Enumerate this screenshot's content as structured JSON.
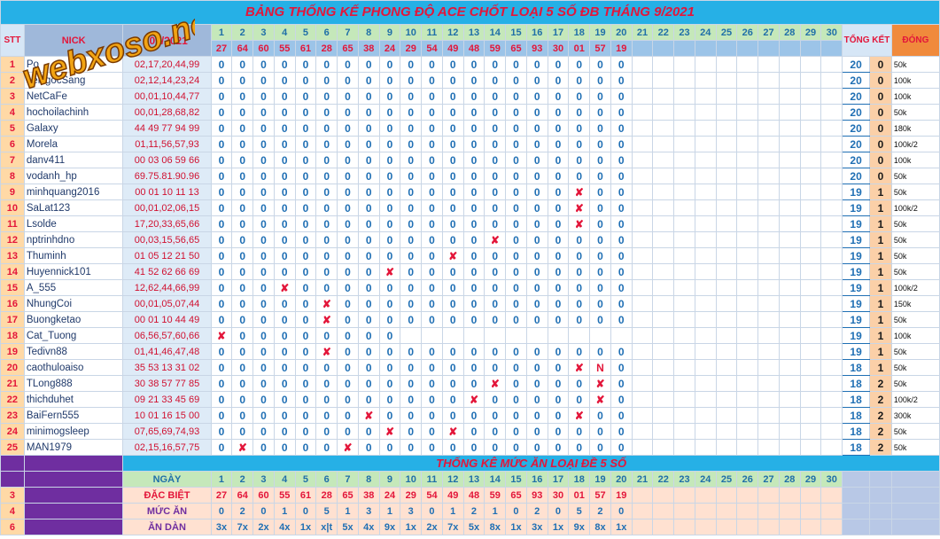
{
  "title": "BẢNG THỐNG KẾ PHONG ĐỘ ACE CHỐT LOẠI 5 SỐ ĐB THÁNG 9/2021",
  "logo_text": "webxoso.net",
  "headers": {
    "stt": "STT",
    "nick": "NICK",
    "date": "/09/2021",
    "tong_ket": "TỔNG KẾT",
    "dong": "ĐÓNG"
  },
  "days": [
    "1",
    "2",
    "3",
    "4",
    "5",
    "6",
    "7",
    "8",
    "9",
    "10",
    "11",
    "12",
    "13",
    "14",
    "15",
    "16",
    "17",
    "18",
    "19",
    "20",
    "21",
    "22",
    "23",
    "24",
    "25",
    "26",
    "27",
    "28",
    "29",
    "30"
  ],
  "results": [
    "27",
    "64",
    "60",
    "55",
    "61",
    "28",
    "65",
    "38",
    "24",
    "29",
    "54",
    "49",
    "48",
    "59",
    "65",
    "93",
    "30",
    "01",
    "57",
    "19",
    "",
    "",
    "",
    "",
    "",
    "",
    "",
    "",
    "",
    ""
  ],
  "players": [
    {
      "stt": "1",
      "nick": "Po",
      "nums": "02,17,20,44,99",
      "marks": [
        "0",
        "0",
        "0",
        "0",
        "0",
        "0",
        "0",
        "0",
        "0",
        "0",
        "0",
        "0",
        "0",
        "0",
        "0",
        "0",
        "0",
        "0",
        "0",
        "0"
      ],
      "total": "20",
      "ket": "0",
      "amount": "50k"
    },
    {
      "stt": "2",
      "nick": "LeNgocSang",
      "nums": "02,12,14,23,24",
      "marks": [
        "0",
        "0",
        "0",
        "0",
        "0",
        "0",
        "0",
        "0",
        "0",
        "0",
        "0",
        "0",
        "0",
        "0",
        "0",
        "0",
        "0",
        "0",
        "0",
        "0"
      ],
      "total": "20",
      "ket": "0",
      "amount": "100k"
    },
    {
      "stt": "3",
      "nick": "NetCaFe",
      "nums": "00,01,10,44,77",
      "marks": [
        "0",
        "0",
        "0",
        "0",
        "0",
        "0",
        "0",
        "0",
        "0",
        "0",
        "0",
        "0",
        "0",
        "0",
        "0",
        "0",
        "0",
        "0",
        "0",
        "0"
      ],
      "total": "20",
      "ket": "0",
      "amount": "100k"
    },
    {
      "stt": "4",
      "nick": "hochoilachinh",
      "nums": "00,01,28,68,82",
      "marks": [
        "0",
        "0",
        "0",
        "0",
        "0",
        "0",
        "0",
        "0",
        "0",
        "0",
        "0",
        "0",
        "0",
        "0",
        "0",
        "0",
        "0",
        "0",
        "0",
        "0"
      ],
      "total": "20",
      "ket": "0",
      "amount": "50k"
    },
    {
      "stt": "5",
      "nick": "Galaxy",
      "nums": "44 49 77 94 99",
      "marks": [
        "0",
        "0",
        "0",
        "0",
        "0",
        "0",
        "0",
        "0",
        "0",
        "0",
        "0",
        "0",
        "0",
        "0",
        "0",
        "0",
        "0",
        "0",
        "0",
        "0"
      ],
      "total": "20",
      "ket": "0",
      "amount": "180k"
    },
    {
      "stt": "6",
      "nick": "Morela",
      "nums": "01,11,56,57,93",
      "marks": [
        "0",
        "0",
        "0",
        "0",
        "0",
        "0",
        "0",
        "0",
        "0",
        "0",
        "0",
        "0",
        "0",
        "0",
        "0",
        "0",
        "0",
        "0",
        "0",
        "0"
      ],
      "total": "20",
      "ket": "0",
      "amount": "100k/2"
    },
    {
      "stt": "7",
      "nick": "danv411",
      "nums": "00 03 06 59 66",
      "marks": [
        "0",
        "0",
        "0",
        "0",
        "0",
        "0",
        "0",
        "0",
        "0",
        "0",
        "0",
        "0",
        "0",
        "0",
        "0",
        "0",
        "0",
        "0",
        "0",
        "0"
      ],
      "total": "20",
      "ket": "0",
      "amount": "100k"
    },
    {
      "stt": "8",
      "nick": "vodanh_hp",
      "nums": "69.75.81.90.96",
      "marks": [
        "0",
        "0",
        "0",
        "0",
        "0",
        "0",
        "0",
        "0",
        "0",
        "0",
        "0",
        "0",
        "0",
        "0",
        "0",
        "0",
        "0",
        "0",
        "0",
        "0"
      ],
      "total": "20",
      "ket": "0",
      "amount": "50k"
    },
    {
      "stt": "9",
      "nick": "minhquang2016",
      "nums": "00 01 10 11 13",
      "marks": [
        "0",
        "0",
        "0",
        "0",
        "0",
        "0",
        "0",
        "0",
        "0",
        "0",
        "0",
        "0",
        "0",
        "0",
        "0",
        "0",
        "0",
        "x",
        "0",
        "0"
      ],
      "total": "19",
      "ket": "1",
      "amount": "50k"
    },
    {
      "stt": "10",
      "nick": "SaLat123",
      "nums": "00,01,02,06,15",
      "marks": [
        "0",
        "0",
        "0",
        "0",
        "0",
        "0",
        "0",
        "0",
        "0",
        "0",
        "0",
        "0",
        "0",
        "0",
        "0",
        "0",
        "0",
        "x",
        "0",
        "0"
      ],
      "total": "19",
      "ket": "1",
      "amount": "100k/2"
    },
    {
      "stt": "11",
      "nick": "Lsolde",
      "nums": "17,20,33,65,66",
      "marks": [
        "0",
        "0",
        "0",
        "0",
        "0",
        "0",
        "0",
        "0",
        "0",
        "0",
        "0",
        "0",
        "0",
        "0",
        "0",
        "0",
        "0",
        "x",
        "0",
        "0"
      ],
      "total": "19",
      "ket": "1",
      "amount": "50k"
    },
    {
      "stt": "12",
      "nick": "nptrinhdno",
      "nums": "00,03,15,56,65",
      "marks": [
        "0",
        "0",
        "0",
        "0",
        "0",
        "0",
        "0",
        "0",
        "0",
        "0",
        "0",
        "0",
        "0",
        "x",
        "0",
        "0",
        "0",
        "0",
        "0",
        "0"
      ],
      "total": "19",
      "ket": "1",
      "amount": "50k"
    },
    {
      "stt": "13",
      "nick": "Thuminh",
      "nums": "01 05 12 21 50",
      "marks": [
        "0",
        "0",
        "0",
        "0",
        "0",
        "0",
        "0",
        "0",
        "0",
        "0",
        "0",
        "x",
        "0",
        "0",
        "0",
        "0",
        "0",
        "0",
        "0",
        "0"
      ],
      "total": "19",
      "ket": "1",
      "amount": "50k"
    },
    {
      "stt": "14",
      "nick": "Huyennick101",
      "nums": "41 52 62 66 69",
      "marks": [
        "0",
        "0",
        "0",
        "0",
        "0",
        "0",
        "0",
        "0",
        "x",
        "0",
        "0",
        "0",
        "0",
        "0",
        "0",
        "0",
        "0",
        "0",
        "0",
        "0"
      ],
      "total": "19",
      "ket": "1",
      "amount": "50k"
    },
    {
      "stt": "15",
      "nick": "A_555",
      "nums": "12,62,44,66,99",
      "marks": [
        "0",
        "0",
        "0",
        "x",
        "0",
        "0",
        "0",
        "0",
        "0",
        "0",
        "0",
        "0",
        "0",
        "0",
        "0",
        "0",
        "0",
        "0",
        "0",
        "0"
      ],
      "total": "19",
      "ket": "1",
      "amount": "100k/2"
    },
    {
      "stt": "16",
      "nick": "NhungCoi",
      "nums": "00,01,05,07,44",
      "marks": [
        "0",
        "0",
        "0",
        "0",
        "0",
        "x",
        "0",
        "0",
        "0",
        "0",
        "0",
        "0",
        "0",
        "0",
        "0",
        "0",
        "0",
        "0",
        "0",
        "0"
      ],
      "total": "19",
      "ket": "1",
      "amount": "150k"
    },
    {
      "stt": "17",
      "nick": "Buongketao",
      "nums": "00 01 10 44 49",
      "marks": [
        "0",
        "0",
        "0",
        "0",
        "0",
        "x",
        "0",
        "0",
        "0",
        "0",
        "0",
        "0",
        "0",
        "0",
        "0",
        "0",
        "0",
        "0",
        "0",
        "0"
      ],
      "total": "19",
      "ket": "1",
      "amount": "50k"
    },
    {
      "stt": "18",
      "nick": "Cat_Tuong",
      "nums": "06,56,57,60,66",
      "marks": [
        "x",
        "0",
        "0",
        "0",
        "0",
        "0",
        "0",
        "0",
        "0",
        "",
        "",
        "",
        "",
        "",
        "",
        "",
        "",
        "",
        "",
        ""
      ],
      "total": "19",
      "ket": "1",
      "amount": "100k"
    },
    {
      "stt": "19",
      "nick": "Tedivn88",
      "nums": "01,41,46,47,48",
      "marks": [
        "0",
        "0",
        "0",
        "0",
        "0",
        "x",
        "0",
        "0",
        "0",
        "0",
        "0",
        "0",
        "0",
        "0",
        "0",
        "0",
        "0",
        "0",
        "0",
        "0"
      ],
      "total": "19",
      "ket": "1",
      "amount": "50k"
    },
    {
      "stt": "20",
      "nick": "caothuloaiso",
      "nums": "35 53 13 31 02",
      "marks": [
        "0",
        "0",
        "0",
        "0",
        "0",
        "0",
        "0",
        "0",
        "0",
        "0",
        "0",
        "0",
        "0",
        "0",
        "0",
        "0",
        "0",
        "x",
        "N",
        "0"
      ],
      "total": "18",
      "ket": "1",
      "amount": "50k"
    },
    {
      "stt": "21",
      "nick": "TLong888",
      "nums": "30 38 57 77 85",
      "marks": [
        "0",
        "0",
        "0",
        "0",
        "0",
        "0",
        "0",
        "0",
        "0",
        "0",
        "0",
        "0",
        "0",
        "x",
        "0",
        "0",
        "0",
        "0",
        "x",
        "0"
      ],
      "total": "18",
      "ket": "2",
      "amount": "50k"
    },
    {
      "stt": "22",
      "nick": "thichduhet",
      "nums": "09 21 33 45 69",
      "marks": [
        "0",
        "0",
        "0",
        "0",
        "0",
        "0",
        "0",
        "0",
        "0",
        "0",
        "0",
        "0",
        "x",
        "0",
        "0",
        "0",
        "0",
        "0",
        "x",
        "0"
      ],
      "total": "18",
      "ket": "2",
      "amount": "100k/2"
    },
    {
      "stt": "23",
      "nick": "BaiFern555",
      "nums": "10 01 16 15 00",
      "marks": [
        "0",
        "0",
        "0",
        "0",
        "0",
        "0",
        "0",
        "x",
        "0",
        "0",
        "0",
        "0",
        "0",
        "0",
        "0",
        "0",
        "0",
        "x",
        "0",
        "0"
      ],
      "total": "18",
      "ket": "2",
      "amount": "300k"
    },
    {
      "stt": "24",
      "nick": "minimogsleep",
      "nums": "07,65,69,74,93",
      "marks": [
        "0",
        "0",
        "0",
        "0",
        "0",
        "0",
        "0",
        "0",
        "x",
        "0",
        "0",
        "x",
        "0",
        "0",
        "0",
        "0",
        "0",
        "0",
        "0",
        "0"
      ],
      "total": "18",
      "ket": "2",
      "amount": "50k"
    },
    {
      "stt": "25",
      "nick": "MAN1979",
      "nums": "02,15,16,57,75",
      "marks": [
        "0",
        "x",
        "0",
        "0",
        "0",
        "0",
        "x",
        "0",
        "0",
        "0",
        "0",
        "0",
        "0",
        "0",
        "0",
        "0",
        "0",
        "0",
        "0",
        "0"
      ],
      "total": "18",
      "ket": "2",
      "amount": "50k"
    }
  ],
  "stats": {
    "title": "THỐNG KÊ MỨC ĂN LOẠI ĐỀ 5 SỐ",
    "ngay_label": "NGÀY",
    "db_label": "ĐẶC BIỆT",
    "muc_an_label": "MỨC ĂN",
    "an_dan_label": "ĂN DÀN",
    "row_numbers": [
      "3",
      "4",
      "6"
    ],
    "muc_an": [
      "0",
      "2",
      "0",
      "1",
      "0",
      "5",
      "1",
      "3",
      "1",
      "3",
      "0",
      "1",
      "2",
      "1",
      "0",
      "2",
      "0",
      "5",
      "2",
      "0",
      "",
      "",
      "",
      "",
      "",
      "",
      "",
      "",
      "",
      ""
    ],
    "an_dan": [
      "3x",
      "7x",
      "2x",
      "4x",
      "1x",
      "x|t",
      "5x",
      "4x",
      "9x",
      "1x",
      "2x",
      "7x",
      "5x",
      "8x",
      "1x",
      "3x",
      "1x",
      "9x",
      "8x",
      "1x",
      "",
      "",
      "",
      "",
      "",
      "",
      "",
      "",
      "",
      ""
    ]
  }
}
